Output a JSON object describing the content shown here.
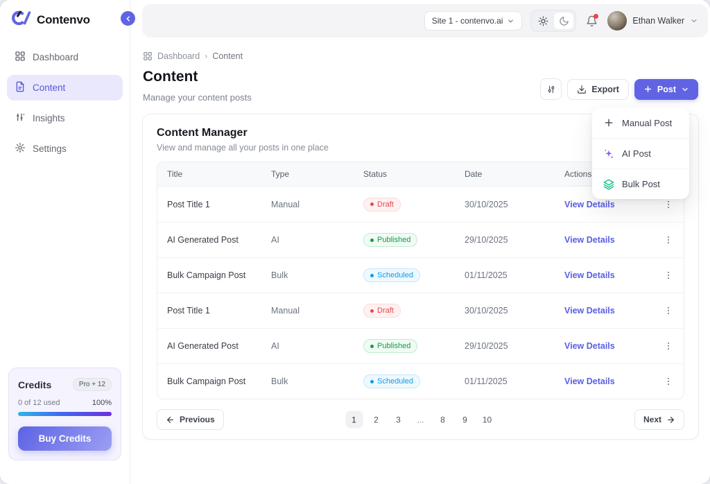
{
  "brand": {
    "name": "Contenvo"
  },
  "sidebar": {
    "items": [
      {
        "label": "Dashboard",
        "icon": "grid-icon",
        "active": false
      },
      {
        "label": "Content",
        "icon": "file-icon",
        "active": true
      },
      {
        "label": "Insights",
        "icon": "chart-sliders-icon",
        "active": false
      },
      {
        "label": "Settings",
        "icon": "gear-icon",
        "active": false
      }
    ]
  },
  "credits": {
    "title": "Credits",
    "plan_badge": "Pro + 12",
    "usage": "0 of 12 used",
    "percent": "100%",
    "progress_value": 100,
    "button_label": "Buy Credits"
  },
  "topbar": {
    "site_selector": "Site 1 - contenvo.ai",
    "user_name": "Ethan Walker",
    "has_notification": true
  },
  "breadcrumb": {
    "items": [
      "Dashboard",
      "Content"
    ]
  },
  "page": {
    "title": "Content",
    "subtitle": "Manage your content posts"
  },
  "toolbar": {
    "export_label": "Export",
    "post_label": "Post"
  },
  "post_menu": {
    "items": [
      {
        "label": "Manual Post",
        "icon": "plus-icon",
        "icon_color": "#4b5563"
      },
      {
        "label": "AI Post",
        "icon": "sparkles-icon",
        "icon_color": "#8b5cf6"
      },
      {
        "label": "Bulk Post",
        "icon": "layers-icon",
        "icon_color": "#10b981"
      }
    ]
  },
  "content_manager": {
    "title": "Content Manager",
    "subtitle": "View and manage all your posts in one place",
    "table": {
      "columns": [
        "Title",
        "Type",
        "Status",
        "Date",
        "Actions"
      ],
      "rows": [
        {
          "title": "Post Title 1",
          "type": "Manual",
          "status": "Draft",
          "status_kind": "draft",
          "date": "30/10/2025",
          "action": "View Details"
        },
        {
          "title": "AI Generated Post",
          "type": "AI",
          "status": "Published",
          "status_kind": "published",
          "date": "29/10/2025",
          "action": "View Details"
        },
        {
          "title": "Bulk Campaign Post",
          "type": "Bulk",
          "status": "Scheduled",
          "status_kind": "scheduled",
          "date": "01/11/2025",
          "action": "View Details"
        },
        {
          "title": "Post Title 1",
          "type": "Manual",
          "status": "Draft",
          "status_kind": "draft",
          "date": "30/10/2025",
          "action": "View Details"
        },
        {
          "title": "AI Generated Post",
          "type": "AI",
          "status": "Published",
          "status_kind": "published",
          "date": "29/10/2025",
          "action": "View Details"
        },
        {
          "title": "Bulk Campaign Post",
          "type": "Bulk",
          "status": "Scheduled",
          "status_kind": "scheduled",
          "date": "01/11/2025",
          "action": "View Details"
        }
      ]
    },
    "pagination": {
      "previous_label": "Previous",
      "next_label": "Next",
      "pages": [
        "1",
        "2",
        "3",
        "...",
        "8",
        "9",
        "10"
      ],
      "current_page": "1"
    }
  },
  "colors": {
    "accent": "#6064e3",
    "accent-light": "#eae8fc",
    "draft": "#e5484d",
    "published": "#189a4a",
    "scheduled": "#0c9de6"
  }
}
